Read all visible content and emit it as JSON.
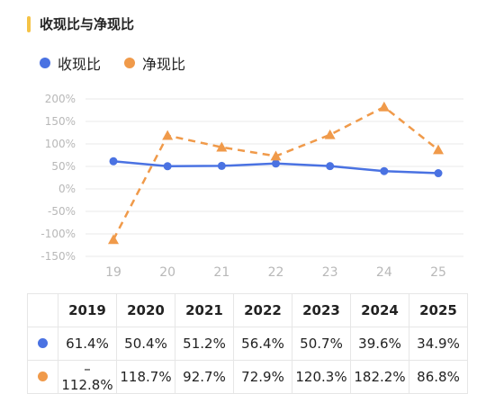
{
  "title": "收现比与净现比",
  "colors": {
    "series1": "#4a72e2",
    "series2": "#f09a4a",
    "title_accent": "#f5c346"
  },
  "table": {
    "years": [
      "2019",
      "2020",
      "2021",
      "2022",
      "2023",
      "2024",
      "2025"
    ],
    "rows": [
      {
        "series": "收现比",
        "cells": [
          "61.4%",
          "50.4%",
          "51.2%",
          "56.4%",
          "50.7%",
          "39.6%",
          "34.9%"
        ]
      },
      {
        "series": "净现比",
        "cells": [
          "–112.8%",
          "118.7%",
          "92.7%",
          "72.9%",
          "120.3%",
          "182.2%",
          "86.8%"
        ]
      }
    ]
  },
  "chart_data": {
    "type": "line",
    "categories": [
      "19",
      "20",
      "21",
      "22",
      "23",
      "24",
      "25"
    ],
    "yticks": [
      "200%",
      "150%",
      "100%",
      "50%",
      "0%",
      "-50%",
      "-100%",
      "-150%"
    ],
    "ylim": [
      -150,
      200
    ],
    "grid": true,
    "legend_position": "top-left",
    "series": [
      {
        "name": "收现比",
        "values": [
          61.4,
          50.4,
          51.2,
          56.4,
          50.7,
          39.6,
          34.9
        ],
        "marker": "circle",
        "line": "solid"
      },
      {
        "name": "净现比",
        "values": [
          -112.8,
          118.7,
          92.7,
          72.9,
          120.3,
          182.2,
          86.8
        ],
        "marker": "triangle",
        "line": "dashed"
      }
    ]
  }
}
